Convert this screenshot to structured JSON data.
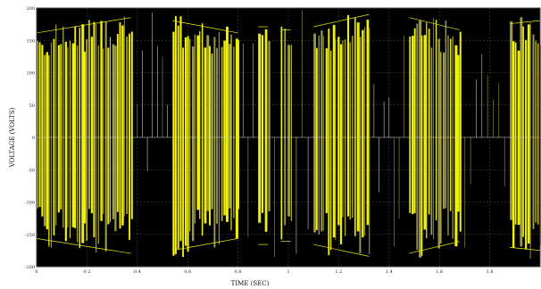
{
  "chart_data": {
    "type": "line",
    "title": "",
    "xlabel": "TIME (SEC)",
    "ylabel": "VOLTAGE (VOLTS)",
    "xlim": [
      0,
      2
    ],
    "ylim": [
      -200,
      200
    ],
    "x_ticks": [
      "0",
      "0.2",
      "0.4",
      "0.6",
      "0.8",
      "1",
      "1.2",
      "1.4",
      "1.6",
      "1.8"
    ],
    "x_tick_values": [
      0,
      0.2,
      0.4,
      0.6,
      0.8,
      1.0,
      1.2,
      1.4,
      1.6,
      1.8
    ],
    "y_ticks": [
      "200",
      "150",
      "100",
      "50",
      "0",
      "-50",
      "-100",
      "-150",
      "-200"
    ],
    "y_tick_values": [
      200,
      150,
      100,
      50,
      0,
      -50,
      -100,
      -150,
      -200
    ],
    "grid": true,
    "legend": "none",
    "colors": {
      "plot_background": "#000000",
      "trace": "#f0f000",
      "trace_dim": "#9a9a4a",
      "grid": "#6a6a6a"
    },
    "series": [
      {
        "segments": [
          {
            "x0": 0.0,
            "x1": 0.375,
            "amp0": 170,
            "amp1": 195,
            "sign": 1
          },
          {
            "x0": 0.54,
            "x1": 0.8,
            "amp0": 190,
            "amp1": 170,
            "sign": 1
          },
          {
            "x0": 0.88,
            "x1": 0.92,
            "amp0": 180,
            "amp1": 180,
            "sign": 1
          },
          {
            "x0": 0.97,
            "x1": 1.01,
            "amp0": 175,
            "amp1": 175,
            "sign": 1
          },
          {
            "x0": 1.1,
            "x1": 1.32,
            "amp0": 180,
            "amp1": 200,
            "sign": 1
          },
          {
            "x0": 1.48,
            "x1": 1.68,
            "amp0": 195,
            "amp1": 175,
            "sign": 1
          },
          {
            "x0": 1.88,
            "x1": 2.0,
            "amp0": 185,
            "amp1": 190,
            "sign": 1
          }
        ]
      }
    ]
  }
}
